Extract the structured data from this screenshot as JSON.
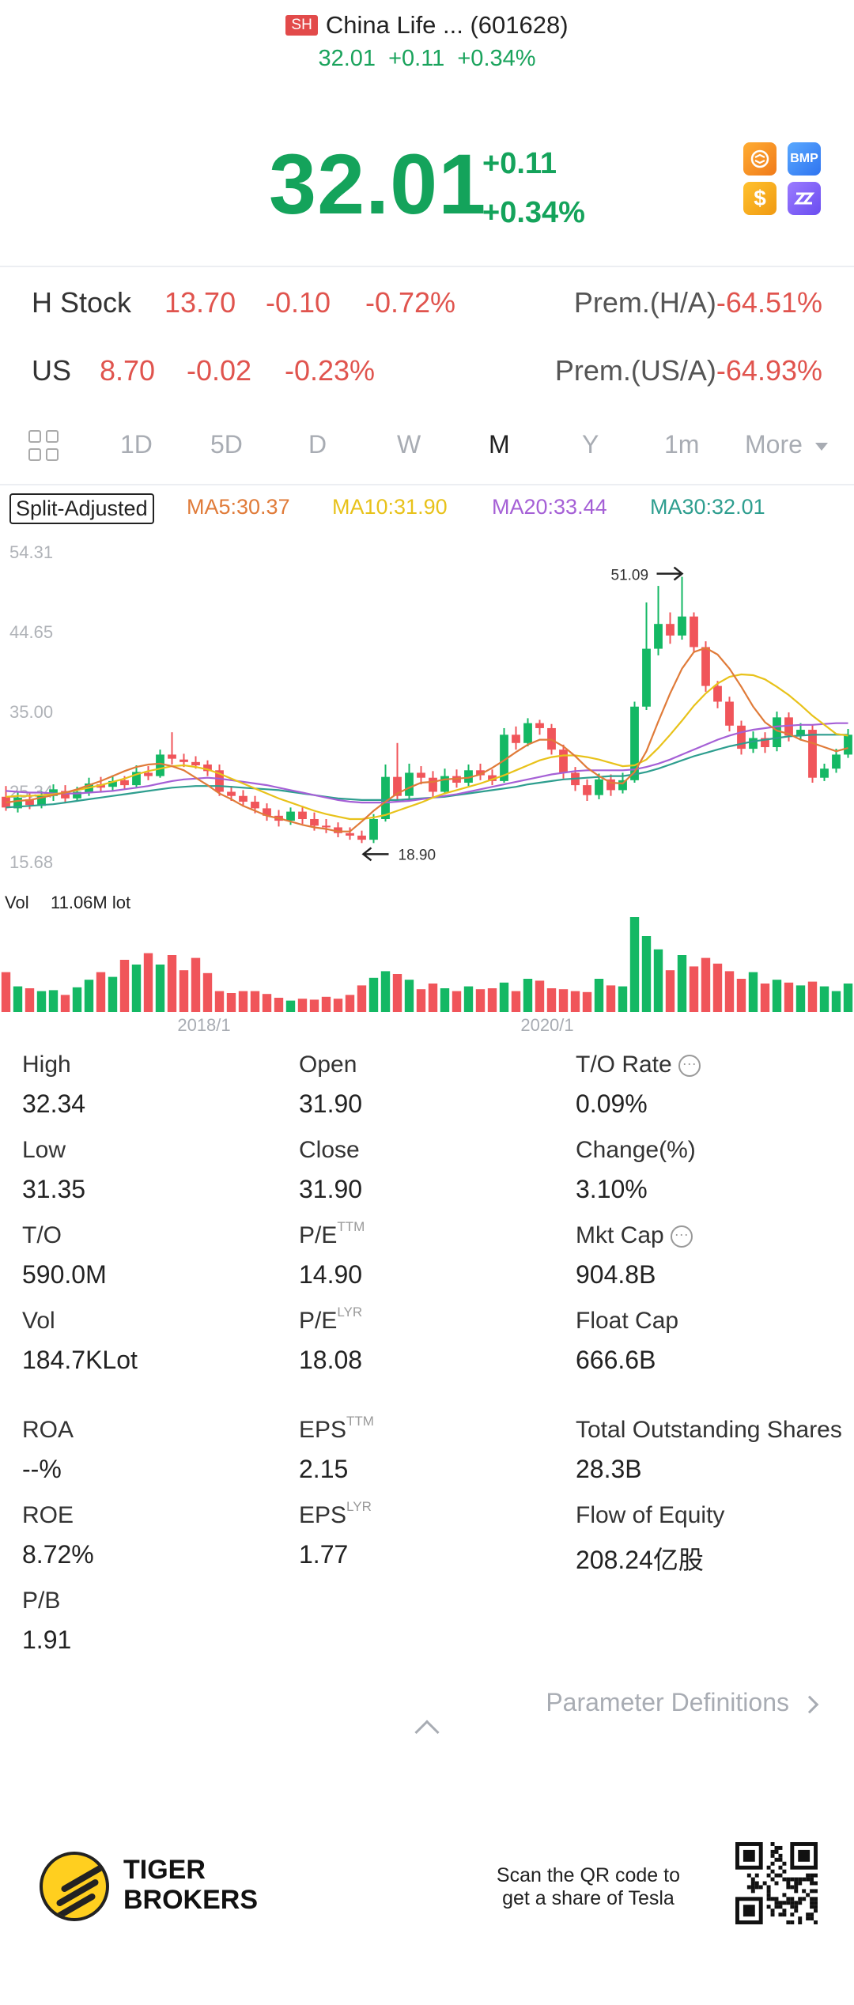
{
  "header": {
    "exchange": "SH",
    "title": "China Life ... (601628)",
    "price": "32.01",
    "change": "+0.11",
    "change_pct": "+0.34%"
  },
  "hero": {
    "price": "32.01",
    "change": "+0.11",
    "change_pct": "+0.34%",
    "icons": [
      "exchange-icon",
      "BMP",
      "$",
      "brand-z-icon"
    ],
    "icon_labels": {
      "bmp": "BMP",
      "dollar": "$"
    }
  },
  "related": [
    {
      "name": "H Stock",
      "price": "13.70",
      "change": "-0.10",
      "pct": "-0.72%",
      "prem_label": "Prem.(H/A)",
      "prem_value": "-64.51%"
    },
    {
      "name": "US",
      "price": "8.70",
      "change": "-0.02",
      "pct": "-0.23%",
      "prem_label": "Prem.(US/A)",
      "prem_value": "-64.93%"
    }
  ],
  "tabs": {
    "items": [
      "1D",
      "5D",
      "D",
      "W",
      "M",
      "Y",
      "1m",
      "More"
    ],
    "active": "M"
  },
  "ma": {
    "split": "Split-Adjusted",
    "ma5": "MA5:30.37",
    "ma10": "MA10:31.90",
    "ma20": "MA20:33.44",
    "ma30": "MA30:32.01",
    "colors": {
      "ma5": "#e07b39",
      "ma10": "#e8c21a",
      "ma20": "#a560d6",
      "ma30": "#2e9e8f"
    }
  },
  "chart_data": {
    "type": "candlestick",
    "y_ticks": [
      "54.31",
      "44.65",
      "35.00",
      "25.34",
      "15.68"
    ],
    "ylim": [
      15.68,
      54.31
    ],
    "max_label": "51.09",
    "min_label": "18.90",
    "x_ticks": [
      "2018/1",
      "2020/1"
    ],
    "vol_label": "Vol",
    "vol_value": "11.06M lot",
    "up_color": "#14b864",
    "down_color": "#f0555a",
    "candles": [
      [
        24.5,
        23.2,
        25.8,
        22.8
      ],
      [
        23.1,
        24.4,
        25.0,
        22.6
      ],
      [
        24.2,
        23.5,
        24.9,
        23.0
      ],
      [
        23.4,
        24.6,
        25.2,
        23.1
      ],
      [
        24.6,
        25.4,
        26.0,
        24.0
      ],
      [
        25.2,
        24.3,
        25.9,
        23.8
      ],
      [
        24.3,
        25.1,
        25.7,
        23.9
      ],
      [
        25.0,
        26.1,
        26.8,
        24.6
      ],
      [
        26.0,
        25.6,
        26.9,
        25.0
      ],
      [
        25.7,
        26.4,
        27.1,
        25.2
      ],
      [
        26.5,
        25.9,
        27.0,
        25.4
      ],
      [
        25.9,
        27.5,
        28.3,
        25.6
      ],
      [
        27.4,
        27.0,
        28.2,
        26.5
      ],
      [
        27.0,
        29.6,
        30.2,
        26.8
      ],
      [
        29.6,
        29.1,
        32.3,
        28.4
      ],
      [
        29.0,
        28.7,
        29.7,
        28.1
      ],
      [
        28.7,
        28.3,
        29.4,
        27.9
      ],
      [
        28.4,
        27.6,
        28.9,
        27.0
      ],
      [
        27.7,
        25.1,
        28.4,
        24.6
      ],
      [
        25.1,
        24.6,
        25.8,
        24.0
      ],
      [
        24.6,
        23.9,
        25.3,
        23.3
      ],
      [
        23.9,
        23.1,
        24.6,
        22.5
      ],
      [
        23.1,
        22.2,
        23.7,
        21.6
      ],
      [
        22.2,
        21.6,
        22.9,
        20.9
      ],
      [
        21.6,
        22.7,
        23.2,
        21.1
      ],
      [
        22.7,
        21.8,
        23.4,
        21.2
      ],
      [
        21.8,
        21.0,
        22.6,
        20.4
      ],
      [
        21.0,
        20.8,
        21.8,
        20.1
      ],
      [
        20.8,
        20.1,
        21.4,
        19.6
      ],
      [
        20.1,
        19.8,
        20.8,
        19.3
      ],
      [
        19.8,
        19.3,
        20.4,
        18.9
      ],
      [
        19.3,
        21.8,
        22.4,
        18.9
      ],
      [
        21.8,
        26.9,
        28.4,
        21.5
      ],
      [
        26.9,
        24.6,
        31.0,
        24.0
      ],
      [
        24.6,
        27.4,
        28.5,
        24.2
      ],
      [
        27.4,
        26.8,
        28.2,
        26.0
      ],
      [
        26.8,
        25.1,
        27.6,
        24.5
      ],
      [
        25.1,
        27.0,
        27.9,
        24.8
      ],
      [
        27.0,
        26.2,
        27.8,
        25.6
      ],
      [
        26.2,
        27.7,
        28.4,
        25.8
      ],
      [
        27.7,
        27.1,
        28.5,
        26.5
      ],
      [
        27.1,
        26.4,
        27.8,
        25.9
      ],
      [
        26.4,
        32.0,
        32.8,
        26.2
      ],
      [
        32.0,
        31.0,
        33.0,
        30.2
      ],
      [
        31.0,
        33.4,
        34.0,
        30.6
      ],
      [
        33.4,
        32.8,
        33.8,
        32.0
      ],
      [
        32.8,
        30.2,
        33.3,
        29.6
      ],
      [
        30.2,
        27.4,
        30.8,
        26.7
      ],
      [
        27.4,
        25.9,
        28.1,
        25.2
      ],
      [
        25.9,
        24.7,
        26.6,
        24.0
      ],
      [
        24.7,
        26.6,
        27.3,
        24.2
      ],
      [
        26.6,
        25.3,
        27.2,
        24.6
      ],
      [
        25.3,
        26.5,
        27.4,
        24.9
      ],
      [
        26.5,
        35.4,
        36.0,
        26.2
      ],
      [
        35.4,
        42.4,
        48.0,
        35.0
      ],
      [
        42.4,
        45.4,
        50.0,
        41.6
      ],
      [
        45.4,
        44.0,
        46.8,
        43.0
      ],
      [
        44.0,
        46.3,
        51.1,
        43.5
      ],
      [
        46.3,
        42.6,
        46.8,
        41.9
      ],
      [
        42.6,
        37.9,
        43.3,
        37.2
      ],
      [
        37.9,
        36.0,
        38.5,
        35.2
      ],
      [
        36.0,
        33.1,
        36.6,
        32.4
      ],
      [
        33.1,
        30.3,
        33.7,
        29.6
      ],
      [
        30.3,
        31.6,
        32.4,
        29.8
      ],
      [
        31.6,
        30.5,
        32.3,
        29.8
      ],
      [
        30.5,
        34.1,
        34.8,
        30.0
      ],
      [
        34.1,
        31.9,
        34.7,
        31.2
      ],
      [
        31.9,
        32.6,
        33.4,
        31.3
      ],
      [
        32.6,
        26.8,
        33.2,
        26.2
      ],
      [
        26.8,
        27.9,
        28.5,
        26.4
      ],
      [
        27.9,
        29.6,
        30.3,
        27.4
      ],
      [
        29.6,
        32.0,
        32.7,
        29.2
      ]
    ],
    "ma5": [
      23.8,
      24.0,
      24.1,
      24.4,
      24.7,
      25.0,
      25.4,
      25.9,
      26.4,
      27.0,
      27.6,
      28.1,
      28.4,
      28.5,
      28.2,
      27.7,
      26.8,
      25.9,
      24.9,
      24.2,
      23.4,
      22.8,
      22.2,
      21.9,
      21.5,
      21.1,
      20.8,
      20.6,
      20.3,
      20.3,
      21.5,
      22.8,
      23.9,
      24.9,
      25.6,
      26.2,
      26.3,
      26.6,
      26.7,
      26.8,
      27.2,
      28.0,
      28.9,
      29.9,
      30.8,
      31.4,
      31.4,
      30.6,
      29.4,
      28.0,
      27.0,
      26.2,
      26.1,
      27.5,
      30.0,
      33.6,
      37.0,
      40.0,
      42.0,
      42.5,
      41.7,
      40.0,
      37.8,
      35.4,
      33.5,
      32.5,
      32.1,
      31.4,
      31.0,
      30.5,
      30.0,
      30.4
    ],
    "ma10": [
      24.5,
      24.6,
      24.6,
      24.7,
      24.8,
      25.0,
      25.3,
      25.6,
      25.9,
      26.3,
      26.7,
      27.2,
      27.6,
      27.9,
      28.2,
      28.3,
      28.1,
      27.8,
      27.3,
      26.7,
      26.1,
      25.5,
      24.9,
      24.3,
      23.8,
      23.3,
      22.8,
      22.4,
      22.1,
      21.8,
      21.8,
      22.0,
      22.3,
      22.8,
      23.3,
      23.8,
      24.4,
      24.9,
      25.3,
      25.7,
      26.1,
      26.6,
      27.1,
      27.7,
      28.3,
      28.9,
      29.3,
      29.5,
      29.5,
      29.3,
      29.0,
      28.6,
      28.2,
      28.3,
      29.0,
      30.4,
      32.0,
      33.7,
      35.5,
      37.0,
      38.2,
      39.0,
      39.3,
      39.2,
      38.7,
      37.8,
      36.8,
      35.6,
      34.3,
      33.2,
      32.1,
      31.9
    ],
    "ma20": [
      25.2,
      25.1,
      25.0,
      25.0,
      24.9,
      24.9,
      24.9,
      25.0,
      25.1,
      25.2,
      25.4,
      25.6,
      25.8,
      26.1,
      26.4,
      26.6,
      26.7,
      26.8,
      26.7,
      26.5,
      26.3,
      26.1,
      25.9,
      25.6,
      25.3,
      25.0,
      24.7,
      24.4,
      24.1,
      23.9,
      23.8,
      23.8,
      23.8,
      23.9,
      24.0,
      24.2,
      24.4,
      24.6,
      24.8,
      25.1,
      25.4,
      25.7,
      26.0,
      26.3,
      26.6,
      26.9,
      27.2,
      27.4,
      27.6,
      27.7,
      27.7,
      27.7,
      27.7,
      27.8,
      28.1,
      28.5,
      29.0,
      29.6,
      30.2,
      30.8,
      31.4,
      31.9,
      32.3,
      32.6,
      32.8,
      33.0,
      33.1,
      33.2,
      33.2,
      33.3,
      33.4,
      33.4
    ],
    "ma30": [
      23.2,
      23.3,
      23.4,
      23.5,
      23.6,
      23.8,
      24.0,
      24.2,
      24.4,
      24.6,
      24.8,
      25.0,
      25.2,
      25.4,
      25.6,
      25.7,
      25.8,
      25.8,
      25.8,
      25.7,
      25.6,
      25.5,
      25.4,
      25.3,
      25.1,
      24.9,
      24.7,
      24.5,
      24.3,
      24.2,
      24.1,
      24.1,
      24.1,
      24.1,
      24.2,
      24.3,
      24.4,
      24.5,
      24.7,
      24.9,
      25.1,
      25.3,
      25.5,
      25.7,
      26.0,
      26.2,
      26.4,
      26.6,
      26.7,
      26.8,
      26.9,
      27.0,
      27.0,
      27.2,
      27.5,
      27.9,
      28.4,
      28.9,
      29.4,
      29.8,
      30.2,
      30.6,
      30.9,
      31.2,
      31.4,
      31.6,
      31.8,
      31.9,
      32.0,
      32.0,
      32.0,
      32.0
    ],
    "volume": [
      0.42,
      0.27,
      0.25,
      0.22,
      0.23,
      0.18,
      0.26,
      0.34,
      0.42,
      0.37,
      0.55,
      0.5,
      0.62,
      0.5,
      0.6,
      0.44,
      0.57,
      0.41,
      0.22,
      0.2,
      0.22,
      0.22,
      0.19,
      0.15,
      0.12,
      0.14,
      0.13,
      0.16,
      0.14,
      0.18,
      0.28,
      0.36,
      0.43,
      0.4,
      0.34,
      0.24,
      0.3,
      0.25,
      0.22,
      0.27,
      0.24,
      0.25,
      0.31,
      0.22,
      0.35,
      0.33,
      0.25,
      0.24,
      0.22,
      0.21,
      0.35,
      0.28,
      0.27,
      1.0,
      0.8,
      0.66,
      0.44,
      0.6,
      0.48,
      0.57,
      0.51,
      0.43,
      0.35,
      0.42,
      0.3,
      0.34,
      0.31,
      0.28,
      0.32,
      0.27,
      0.22,
      0.3
    ]
  },
  "stats": [
    {
      "label": "High",
      "value": "32.34"
    },
    {
      "label": "Open",
      "value": "31.90"
    },
    {
      "label": "T/O Rate",
      "value": "0.09%",
      "info": true
    },
    {
      "label": "Low",
      "value": "31.35"
    },
    {
      "label": "Close",
      "value": "31.90"
    },
    {
      "label": "Change(%)",
      "value": "3.10%"
    },
    {
      "label": "T/O",
      "value": "590.0M"
    },
    {
      "label": "P/E",
      "sup": "TTM",
      "value": "14.90"
    },
    {
      "label": "Mkt Cap",
      "value": "904.8B",
      "info": true
    },
    {
      "label": "Vol",
      "value": "184.7KLot"
    },
    {
      "label": "P/E",
      "sup": "LYR",
      "value": "18.08"
    },
    {
      "label": "Float Cap",
      "value": "666.6B"
    },
    {
      "label": "ROA",
      "value": "--%"
    },
    {
      "label": "EPS",
      "sup": "TTM",
      "value": "2.15"
    },
    {
      "label": "Total Outstanding Shares",
      "value": "28.3B"
    },
    {
      "label": "ROE",
      "value": "8.72%"
    },
    {
      "label": "EPS",
      "sup": "LYR",
      "value": "1.77"
    },
    {
      "label": "Flow of Equity",
      "value": "208.24亿股"
    },
    {
      "label": "P/B",
      "value": "1.91"
    }
  ],
  "param_definitions": "Parameter Definitions",
  "footer": {
    "brand_line1": "TIGER",
    "brand_line2": "BROKERS",
    "scan_line1": "Scan the QR code to",
    "scan_line2": "get a share of Tesla"
  }
}
